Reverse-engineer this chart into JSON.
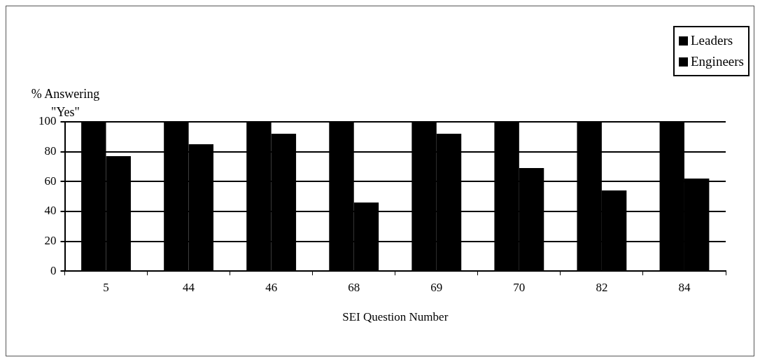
{
  "chart_data": {
    "type": "bar",
    "xlabel": "SEI Question Number",
    "ylabel": "% Answering \"Yes\"",
    "categories": [
      "5",
      "44",
      "46",
      "68",
      "69",
      "70",
      "82",
      "84"
    ],
    "series": [
      {
        "name": "Leaders",
        "color": "#000000",
        "values": [
          100,
          100,
          100,
          100,
          100,
          100,
          100,
          100
        ]
      },
      {
        "name": "Engineers",
        "color": "#000000",
        "values": [
          77,
          85,
          92,
          46,
          92,
          69,
          54,
          62
        ]
      }
    ],
    "ylim": [
      0,
      100
    ],
    "yticks": [
      0,
      20,
      40,
      60,
      80,
      100
    ],
    "grid": "y",
    "legend": "top right"
  }
}
